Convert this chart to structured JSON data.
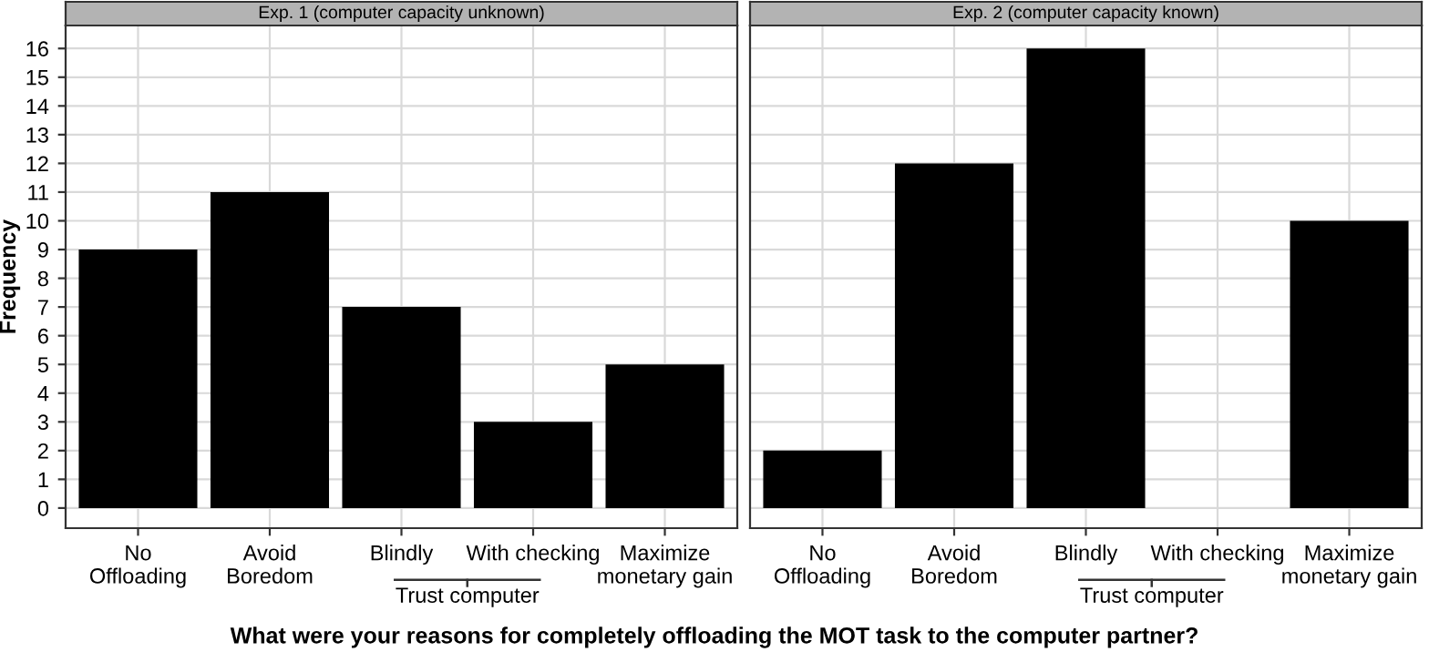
{
  "chart_data": [
    {
      "type": "bar",
      "title": "Exp. 1 (computer capacity unknown)",
      "ylabel": "Frequency",
      "xlabel": "What were your reasons for completely offloading the MOT task to the computer partner?",
      "categories": [
        "No\nOffloading",
        "Avoid\nBoredom",
        "Blindly",
        "With checking",
        "Maximize\nmonetary gain"
      ],
      "values": [
        9,
        11,
        7,
        3,
        5
      ],
      "color": "#000000",
      "ylim": [
        -0.7,
        16.8
      ],
      "yticks": [
        0,
        1,
        2,
        3,
        4,
        5,
        6,
        7,
        8,
        9,
        10,
        11,
        12,
        13,
        14,
        15,
        16
      ],
      "grid": true,
      "annotations": [
        "Trust computer"
      ]
    },
    {
      "type": "bar",
      "title": "Exp. 2 (computer capacity known)",
      "categories": [
        "No\nOffloading",
        "Avoid\nBoredom",
        "Blindly",
        "With checking",
        "Maximize\nmonetary gain"
      ],
      "values": [
        2,
        12,
        16,
        0,
        10
      ],
      "color": "#000000",
      "ylim": [
        -0.7,
        16.8
      ],
      "yticks": [
        0,
        1,
        2,
        3,
        4,
        5,
        6,
        7,
        8,
        9,
        10,
        11,
        12,
        13,
        14,
        15,
        16
      ],
      "grid": true,
      "tick_labels": "x",
      "annotations": [
        "Trust computer"
      ]
    }
  ]
}
